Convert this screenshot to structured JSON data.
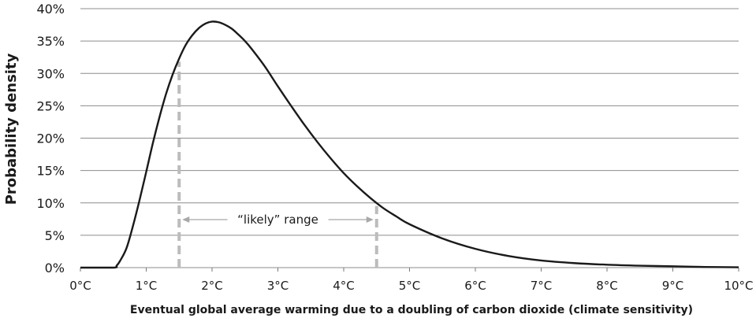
{
  "chart_data": {
    "type": "line",
    "title": "",
    "xlabel": "Eventual global average warming due to a doubling of carbon dioxide (climate sensitivity)",
    "ylabel": "Probability density",
    "xlim": [
      0,
      10
    ],
    "ylim": [
      0,
      40
    ],
    "grid": "horizontal",
    "legend": "none",
    "x_tick_labels": [
      "0°C",
      "1°C",
      "2°C",
      "3°C",
      "4°C",
      "5°C",
      "6°C",
      "7°C",
      "8°C",
      "9°C",
      "10°C"
    ],
    "y_tick_labels": [
      "0%",
      "5%",
      "10%",
      "15%",
      "20%",
      "25%",
      "30%",
      "35%",
      "40%"
    ],
    "series": [
      {
        "x": [
          0,
          0.5,
          0.55,
          0.6,
          0.7,
          0.8,
          0.9,
          1.0,
          1.1,
          1.2,
          1.3,
          1.4,
          1.5,
          1.6,
          1.7,
          1.8,
          1.9,
          2.0,
          2.1,
          2.2,
          2.3,
          2.4,
          2.5,
          2.6,
          2.8,
          3.0,
          3.2,
          3.4,
          3.6,
          3.8,
          4.0,
          4.2,
          4.4,
          4.6,
          4.8,
          5.0,
          5.5,
          6.0,
          6.5,
          7.0,
          7.5,
          8.0,
          8.5,
          9.0,
          9.5,
          10.0
        ],
        "values": [
          0,
          0,
          0.3,
          1.0,
          3.0,
          6.5,
          10.5,
          14.8,
          19.2,
          23.2,
          26.8,
          29.8,
          32.3,
          34.4,
          35.9,
          37.0,
          37.7,
          38.0,
          37.9,
          37.5,
          36.9,
          36.0,
          35.0,
          33.8,
          31.1,
          28.0,
          25.0,
          22.1,
          19.4,
          16.9,
          14.6,
          12.6,
          10.8,
          9.2,
          7.9,
          6.7,
          4.5,
          2.9,
          1.8,
          1.1,
          0.7,
          0.45,
          0.3,
          0.2,
          0.1,
          0.05
        ]
      }
    ],
    "likely_range": {
      "label": "“likely” range",
      "x": [
        1.5,
        4.5
      ]
    },
    "colors": {
      "curve": "#1a1a1a",
      "grid": "#8c8c8c",
      "range_markers": "#bcbcbc"
    }
  }
}
